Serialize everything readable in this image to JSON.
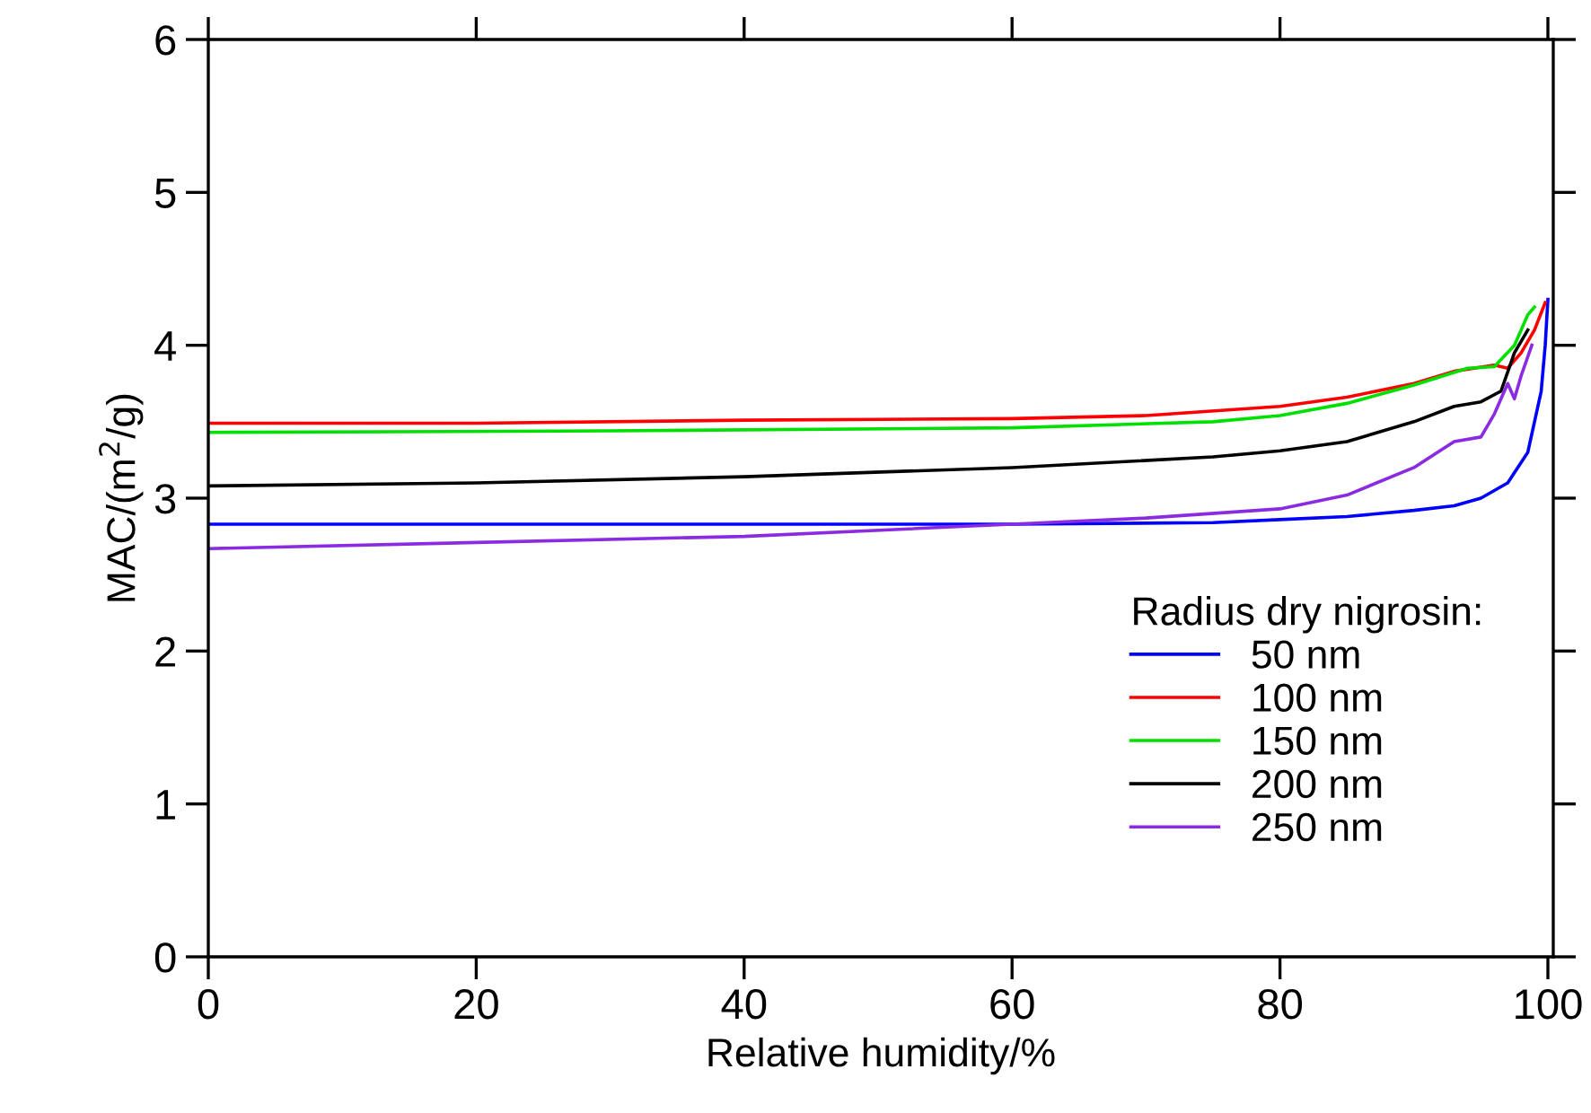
{
  "chart_data": {
    "type": "line",
    "xlabel": "Relative humidity/%",
    "ylabel": "MAC/(m$^{2}$/g)",
    "legend_title": "Radius dry nigrosin:",
    "legend": "bottom right",
    "grid": false,
    "xlim": [
      0,
      100.4
    ],
    "ylim": [
      0,
      6
    ],
    "xticks": [
      0,
      20,
      40,
      60,
      80,
      100
    ],
    "yticks": [
      0,
      1,
      2,
      3,
      4,
      5,
      6
    ],
    "series": [
      {
        "name": "50 nm",
        "color": "#0000ff",
        "x": [
          0,
          20,
          40,
          60,
          75,
          80,
          85,
          90,
          93,
          95,
          97,
          98.5,
          99.5,
          99.8,
          100
        ],
        "values": [
          2.83,
          2.83,
          2.83,
          2.83,
          2.84,
          2.86,
          2.88,
          2.92,
          2.95,
          3.0,
          3.1,
          3.3,
          3.7,
          4.0,
          4.3
        ]
      },
      {
        "name": "100 nm",
        "color": "#ff0000",
        "x": [
          0,
          20,
          40,
          60,
          70,
          80,
          85,
          90,
          93,
          96,
          97,
          98,
          99,
          99.8
        ],
        "values": [
          3.49,
          3.49,
          3.51,
          3.52,
          3.54,
          3.6,
          3.66,
          3.75,
          3.83,
          3.87,
          3.85,
          3.95,
          4.1,
          4.28
        ]
      },
      {
        "name": "150 nm",
        "color": "#00e000",
        "x": [
          0,
          30,
          60,
          75,
          80,
          85,
          90,
          94,
          96,
          97.5,
          98.5,
          99
        ],
        "values": [
          3.43,
          3.44,
          3.46,
          3.5,
          3.54,
          3.62,
          3.74,
          3.85,
          3.86,
          4.0,
          4.2,
          4.25
        ]
      },
      {
        "name": "200 nm",
        "color": "#000000",
        "x": [
          0,
          20,
          40,
          60,
          75,
          80,
          85,
          90,
          93,
          95,
          96.5,
          97.5,
          98.5
        ],
        "values": [
          3.08,
          3.1,
          3.14,
          3.2,
          3.27,
          3.31,
          3.37,
          3.5,
          3.6,
          3.63,
          3.7,
          3.95,
          4.1
        ]
      },
      {
        "name": "250 nm",
        "color": "#8a2be2",
        "x": [
          0,
          20,
          40,
          60,
          70,
          80,
          85,
          90,
          93,
          95,
          96,
          97,
          97.5,
          98,
          98.8
        ],
        "values": [
          2.67,
          2.71,
          2.75,
          2.83,
          2.87,
          2.93,
          3.02,
          3.2,
          3.37,
          3.4,
          3.55,
          3.75,
          3.65,
          3.8,
          4.0
        ]
      }
    ]
  }
}
